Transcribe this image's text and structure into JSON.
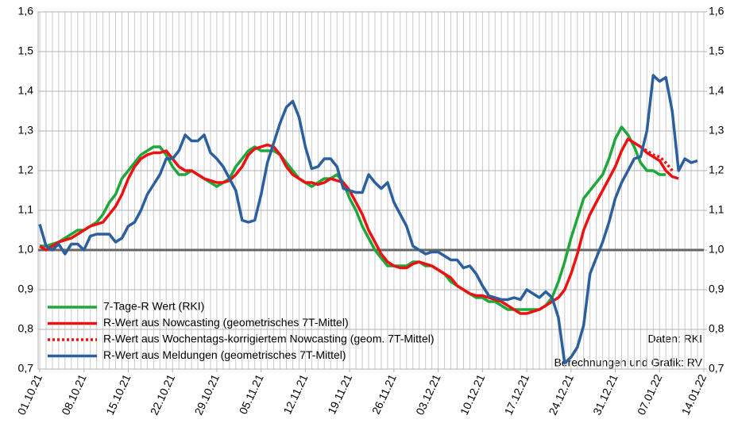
{
  "chart_data": {
    "type": "line",
    "categories": [
      "01.10.21",
      null,
      null,
      null,
      null,
      null,
      null,
      "08.10.21",
      null,
      null,
      null,
      null,
      null,
      null,
      "15.10.21",
      null,
      null,
      null,
      null,
      null,
      null,
      "22.10.21",
      null,
      null,
      null,
      null,
      null,
      null,
      "29.10.21",
      null,
      null,
      null,
      null,
      null,
      null,
      "05.11.21",
      null,
      null,
      null,
      null,
      null,
      null,
      "12.11.21",
      null,
      null,
      null,
      null,
      null,
      null,
      "19.11.21",
      null,
      null,
      null,
      null,
      null,
      null,
      "26.11.21",
      null,
      null,
      null,
      null,
      null,
      null,
      "03.12.21",
      null,
      null,
      null,
      null,
      null,
      null,
      "10.12.21",
      null,
      null,
      null,
      null,
      null,
      null,
      "17.12.21",
      null,
      null,
      null,
      null,
      null,
      null,
      "24.12.21",
      null,
      null,
      null,
      null,
      null,
      null,
      "31.12.21",
      null,
      null,
      null,
      null,
      null,
      null,
      "07.01.22",
      null,
      null,
      null,
      null,
      null,
      null,
      "14.01.22"
    ],
    "series": [
      {
        "name": "7-Tage-R Wert (RKI)",
        "color": "#1ea83c",
        "linestyle": "solid",
        "values": [
          1.01,
          1.01,
          1.015,
          1.02,
          1.03,
          1.04,
          1.05,
          1.05,
          1.06,
          1.07,
          1.09,
          1.12,
          1.14,
          1.18,
          1.2,
          1.22,
          1.24,
          1.25,
          1.26,
          1.26,
          1.24,
          1.21,
          1.19,
          1.19,
          1.2,
          1.19,
          1.18,
          1.17,
          1.16,
          1.17,
          1.18,
          1.21,
          1.23,
          1.25,
          1.26,
          1.25,
          1.25,
          1.25,
          1.24,
          1.22,
          1.2,
          1.18,
          1.17,
          1.16,
          1.17,
          1.18,
          1.18,
          1.19,
          1.17,
          1.13,
          1.1,
          1.06,
          1.03,
          1.0,
          0.98,
          0.96,
          0.96,
          0.96,
          0.96,
          0.97,
          0.97,
          0.96,
          0.96,
          0.95,
          0.94,
          0.92,
          0.91,
          0.9,
          0.89,
          0.88,
          0.88,
          0.87,
          0.87,
          0.86,
          0.85,
          0.85,
          0.85,
          0.85,
          0.85,
          0.85,
          0.86,
          0.88,
          0.92,
          0.97,
          1.03,
          1.08,
          1.13,
          1.15,
          1.17,
          1.19,
          1.23,
          1.28,
          1.31,
          1.29,
          1.26,
          1.22,
          1.2,
          1.2,
          1.19,
          1.19,
          null,
          null,
          null,
          null,
          null,
          null
        ]
      },
      {
        "name": "R-Wert aus Nowcasting (geometrisches 7T-Mittel)",
        "color": "#ee1111",
        "linestyle": "solid",
        "values": [
          1.01,
          1.0,
          1.01,
          1.02,
          1.025,
          1.03,
          1.04,
          1.05,
          1.06,
          1.065,
          1.07,
          1.09,
          1.11,
          1.14,
          1.18,
          1.21,
          1.23,
          1.24,
          1.245,
          1.245,
          1.25,
          1.23,
          1.21,
          1.2,
          1.2,
          1.19,
          1.18,
          1.175,
          1.17,
          1.17,
          1.175,
          1.19,
          1.21,
          1.24,
          1.255,
          1.26,
          1.265,
          1.26,
          1.24,
          1.21,
          1.19,
          1.18,
          1.17,
          1.17,
          1.165,
          1.17,
          1.18,
          1.175,
          1.17,
          1.15,
          1.12,
          1.09,
          1.05,
          1.02,
          0.99,
          0.97,
          0.96,
          0.955,
          0.955,
          0.965,
          0.97,
          0.965,
          0.96,
          0.95,
          0.94,
          0.93,
          0.91,
          0.9,
          0.89,
          0.885,
          0.885,
          0.88,
          0.875,
          0.87,
          0.86,
          0.85,
          0.84,
          0.84,
          0.845,
          0.85,
          0.86,
          0.87,
          0.88,
          0.9,
          0.94,
          0.99,
          1.05,
          1.09,
          1.12,
          1.15,
          1.18,
          1.21,
          1.25,
          1.28,
          1.27,
          1.26,
          1.245,
          1.235,
          1.225,
          1.2,
          1.185,
          1.18,
          null,
          null,
          null,
          null
        ]
      },
      {
        "name": "R-Wert aus Wochentags-korrigiertem Nowcasting (geom. 7T-Mittel)",
        "color": "#ee1111",
        "linestyle": "dotted",
        "values": [
          null,
          null,
          null,
          null,
          null,
          null,
          null,
          null,
          null,
          null,
          null,
          null,
          null,
          null,
          null,
          null,
          null,
          null,
          null,
          null,
          null,
          null,
          null,
          null,
          null,
          null,
          null,
          null,
          null,
          null,
          null,
          null,
          null,
          null,
          null,
          null,
          null,
          null,
          null,
          null,
          null,
          null,
          null,
          null,
          null,
          null,
          null,
          null,
          null,
          null,
          null,
          null,
          null,
          null,
          null,
          null,
          null,
          null,
          null,
          null,
          null,
          null,
          null,
          null,
          null,
          null,
          null,
          null,
          null,
          null,
          null,
          null,
          null,
          null,
          null,
          null,
          null,
          null,
          null,
          null,
          null,
          null,
          null,
          null,
          null,
          null,
          null,
          null,
          null,
          null,
          null,
          null,
          null,
          null,
          null,
          1.26,
          1.25,
          1.24,
          1.235,
          1.22,
          1.2,
          null,
          null,
          null,
          null,
          null
        ]
      },
      {
        "name": "R-Wert aus Meldungen (geometrisches 7T-Mittel)",
        "color": "#2c5f9e",
        "linestyle": "solid",
        "values": [
          1.065,
          1.01,
          1.0,
          1.015,
          0.99,
          1.015,
          1.015,
          1.0,
          1.035,
          1.04,
          1.04,
          1.04,
          1.02,
          1.03,
          1.06,
          1.07,
          1.1,
          1.14,
          1.165,
          1.19,
          1.23,
          1.23,
          1.25,
          1.29,
          1.275,
          1.275,
          1.29,
          1.245,
          1.23,
          1.21,
          1.18,
          1.15,
          1.075,
          1.07,
          1.075,
          1.14,
          1.22,
          1.27,
          1.32,
          1.36,
          1.375,
          1.335,
          1.26,
          1.205,
          1.21,
          1.23,
          1.23,
          1.21,
          1.155,
          1.15,
          1.145,
          1.145,
          1.19,
          1.17,
          1.155,
          1.17,
          1.12,
          1.09,
          1.06,
          1.01,
          1.0,
          0.99,
          0.995,
          0.995,
          0.985,
          0.975,
          0.975,
          0.955,
          0.96,
          0.94,
          0.91,
          0.885,
          0.88,
          0.875,
          0.875,
          0.88,
          0.875,
          0.9,
          0.89,
          0.88,
          0.895,
          0.88,
          0.83,
          0.715,
          0.73,
          0.755,
          0.81,
          0.94,
          0.98,
          1.02,
          1.07,
          1.13,
          1.17,
          1.2,
          1.23,
          1.235,
          1.3,
          1.44,
          1.425,
          1.435,
          1.35,
          1.2,
          1.23,
          1.22,
          1.225,
          null
        ]
      }
    ],
    "ylim": [
      0.7,
      1.6
    ],
    "yticks": [
      {
        "value": 0.7,
        "label": "0,7"
      },
      {
        "value": 0.8,
        "label": "0,8"
      },
      {
        "value": 0.9,
        "label": "0,9"
      },
      {
        "value": 1.0,
        "label": "1,0"
      },
      {
        "value": 1.1,
        "label": "1,1"
      },
      {
        "value": 1.2,
        "label": "1,2"
      },
      {
        "value": 1.3,
        "label": "1,3"
      },
      {
        "value": 1.4,
        "label": "1,4"
      },
      {
        "value": 1.5,
        "label": "1,5"
      },
      {
        "value": 1.6,
        "label": "1,6"
      }
    ],
    "y2lim": [
      0.7,
      1.6
    ],
    "y2ticks": [
      {
        "value": 0.7,
        "label": "0,7"
      },
      {
        "value": 0.8,
        "label": "0,8"
      },
      {
        "value": 0.9,
        "label": "0,9"
      },
      {
        "value": 1.0,
        "label": "1,0"
      },
      {
        "value": 1.1,
        "label": "1,1"
      },
      {
        "value": 1.2,
        "label": "1,2"
      },
      {
        "value": 1.3,
        "label": "1,3"
      },
      {
        "value": 1.4,
        "label": "1,4"
      },
      {
        "value": 1.5,
        "label": "1,5"
      },
      {
        "value": 1.6,
        "label": "1,6"
      }
    ],
    "hline": 1.0,
    "grid": true,
    "legend": "lower left",
    "annotations": [
      "Daten: RKI",
      "Berechnungen und Grafik: RV"
    ]
  }
}
